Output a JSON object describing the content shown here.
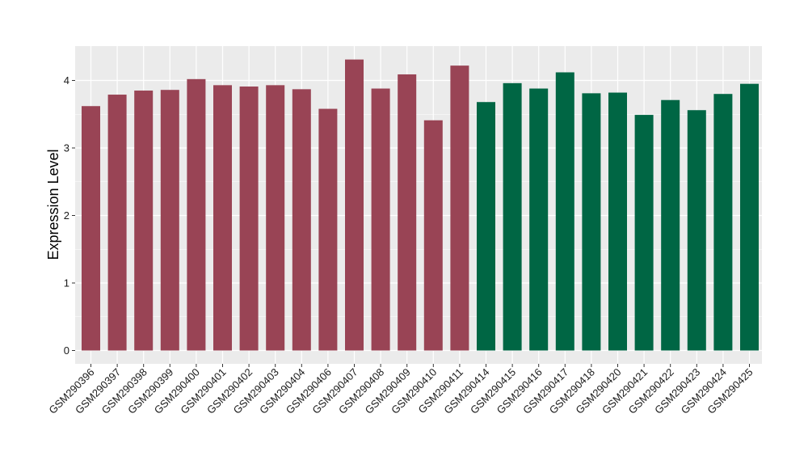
{
  "chart_data": {
    "type": "bar",
    "title": "",
    "xlabel": "",
    "ylabel": "Expression Level",
    "ylim": [
      0,
      4.5
    ],
    "yticks": [
      0,
      1,
      2,
      3,
      4
    ],
    "grid": true,
    "legend": "none",
    "categories": [
      "GSM290396",
      "GSM290397",
      "GSM290398",
      "GSM290399",
      "GSM290400",
      "GSM290401",
      "GSM290402",
      "GSM290403",
      "GSM290404",
      "GSM290406",
      "GSM290407",
      "GSM290408",
      "GSM290409",
      "GSM290410",
      "GSM290411",
      "GSM290414",
      "GSM290415",
      "GSM290416",
      "GSM290417",
      "GSM290418",
      "GSM290420",
      "GSM290421",
      "GSM290422",
      "GSM290423",
      "GSM290424",
      "GSM290425"
    ],
    "values": [
      3.62,
      3.79,
      3.85,
      3.86,
      4.02,
      3.93,
      3.91,
      3.93,
      3.87,
      3.58,
      4.31,
      3.88,
      4.09,
      3.41,
      4.22,
      3.68,
      3.96,
      3.88,
      4.12,
      3.81,
      3.82,
      3.49,
      3.71,
      3.56,
      3.8,
      3.95
    ],
    "groups": [
      0,
      0,
      0,
      0,
      0,
      0,
      0,
      0,
      0,
      0,
      0,
      0,
      0,
      0,
      0,
      1,
      1,
      1,
      1,
      1,
      1,
      1,
      1,
      1,
      1,
      1
    ],
    "group_colors": [
      "#994455",
      "#006644"
    ],
    "panel_color": "#ebebeb",
    "grid_color": "#ffffff"
  }
}
